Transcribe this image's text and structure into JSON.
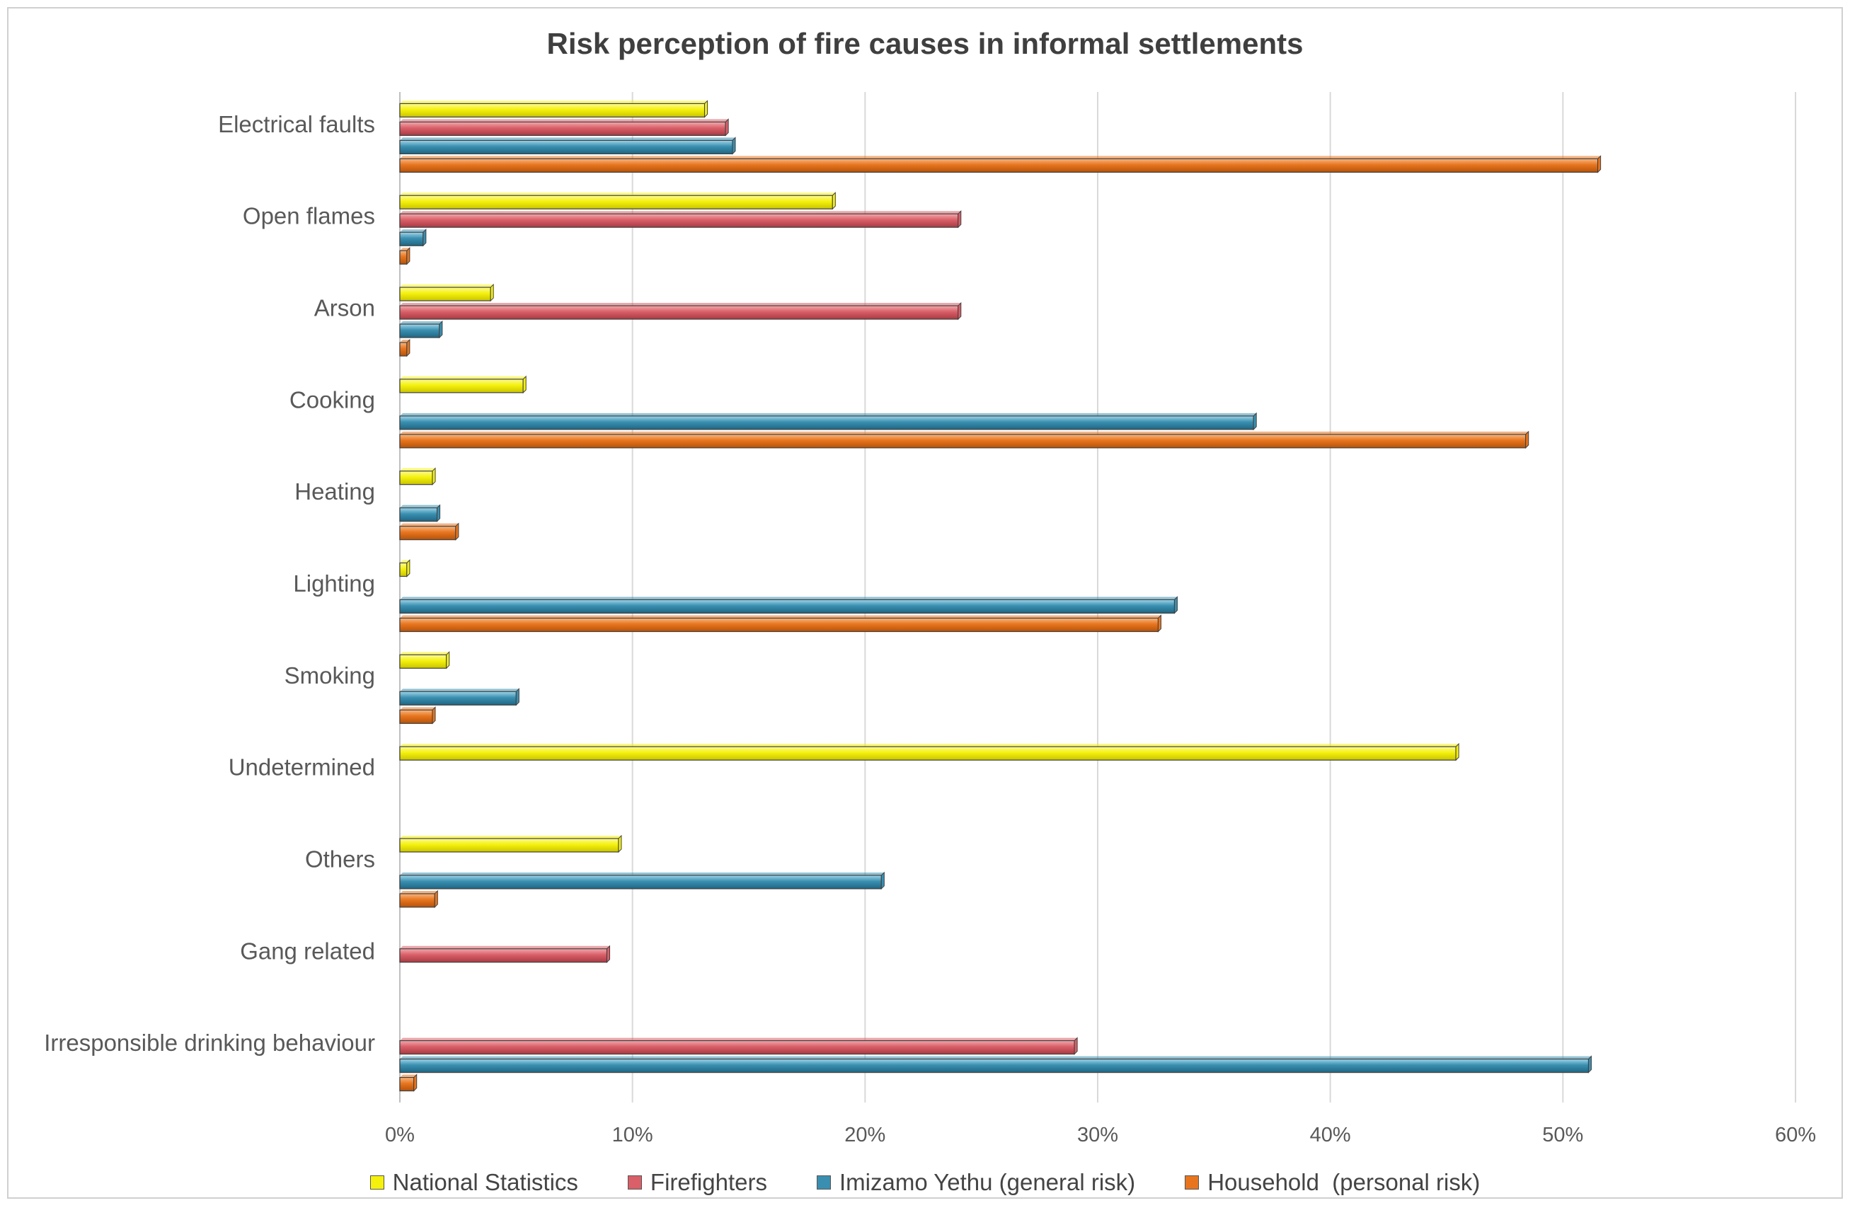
{
  "chart_data": {
    "type": "bar",
    "orientation": "horizontal",
    "title": "Risk perception of fire causes in informal settlements",
    "xlabel": "",
    "ylabel": "",
    "xlim": [
      0,
      60
    ],
    "x_ticks": [
      "0%",
      "10%",
      "20%",
      "30%",
      "40%",
      "50%",
      "60%"
    ],
    "grid": true,
    "legend_position": "bottom",
    "categories": [
      "Electrical faults",
      "Open flames",
      "Arson",
      "Cooking",
      "Heating",
      "Lighting",
      "Smoking",
      "Undetermined",
      "Others",
      "Gang related",
      "Irresponsible drinking behaviour"
    ],
    "series": [
      {
        "name": "National Statistics",
        "color": "#f5f10c",
        "values": [
          13.1,
          18.6,
          3.9,
          5.3,
          1.4,
          0.3,
          2.0,
          45.4,
          9.4,
          0,
          0
        ]
      },
      {
        "name": "Firefighters",
        "color": "#d95f68",
        "values": [
          14.0,
          24.0,
          24.0,
          0,
          0,
          0,
          0,
          0,
          0,
          8.9,
          29.0
        ]
      },
      {
        "name": "Imizamo Yethu (general risk)",
        "color": "#3a8fb0",
        "values": [
          14.3,
          1.0,
          1.7,
          36.7,
          1.6,
          33.3,
          5.0,
          0,
          20.7,
          0,
          51.1
        ]
      },
      {
        "name": "Household  (personal risk)",
        "color": "#e8751e",
        "values": [
          51.5,
          0.3,
          0.3,
          48.4,
          2.4,
          32.6,
          1.4,
          0,
          1.5,
          0,
          0.6
        ]
      }
    ]
  }
}
